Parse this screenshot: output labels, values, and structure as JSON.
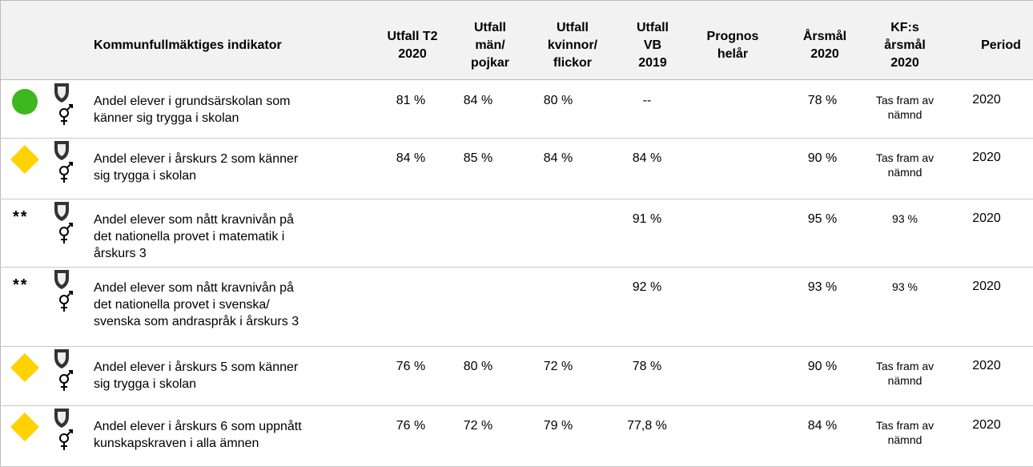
{
  "table": {
    "header": [
      [
        "Kommunfullmäktiges indikator"
      ],
      [
        "Utfall T2",
        "2020"
      ],
      [
        "Utfall",
        "män/",
        "pojkar"
      ],
      [
        "Utfall",
        "kvinnor/",
        "flickor"
      ],
      [
        "Utfall",
        "VB",
        "2019"
      ],
      [
        "Prognos",
        "helår"
      ],
      [
        "Årsmål",
        "2020"
      ],
      [
        "KF:s",
        "årsmål",
        "2020"
      ],
      [
        "Period"
      ]
    ],
    "rows": [
      {
        "marker": "circle",
        "marker_color": "#3cb81e",
        "note": null,
        "indicator": [
          "Andel elever i grundsärskolan som",
          "känner sig trygga i skolan"
        ],
        "cells": [
          "81 %",
          "84 %",
          "80 %",
          "--",
          null,
          "78 %",
          "Tas fram av nämnd",
          "2020"
        ]
      },
      {
        "marker": "diamond",
        "marker_color": "#ffd200",
        "note": null,
        "indicator": [
          "Andel elever i årskurs 2 som känner",
          "sig trygga i skolan"
        ],
        "cells": [
          "84 %",
          "85 %",
          "84 %",
          "84 %",
          null,
          "90 %",
          "Tas fram av nämnd",
          "2020"
        ]
      },
      {
        "marker": null,
        "marker_color": null,
        "note": "**",
        "indicator": [
          "Andel elever som nått kravnivån på",
          "det nationella provet i matematik i",
          "årskurs 3"
        ],
        "cells": [
          null,
          null,
          null,
          "91 %",
          null,
          "95 %",
          "93 %",
          "2020"
        ]
      },
      {
        "marker": null,
        "marker_color": null,
        "note": "**",
        "indicator": [
          "Andel elever som nått kravnivån på",
          "det nationella provet i svenska/",
          "svenska som andraspråk i årskurs 3"
        ],
        "cells": [
          null,
          null,
          null,
          "92 %",
          null,
          "93 %",
          "93 %",
          "2020"
        ]
      },
      {
        "marker": "diamond",
        "marker_color": "#ffd200",
        "note": null,
        "indicator": [
          "Andel elever i årskurs 5 som känner",
          "sig trygga i skolan"
        ],
        "cells": [
          "76 %",
          "80 %",
          "72 %",
          "78 %",
          null,
          "90 %",
          "Tas fram av nämnd",
          "2020"
        ]
      },
      {
        "marker": "diamond",
        "marker_color": "#ffd200",
        "note": null,
        "indicator": [
          "Andel elever i årskurs 6 som uppnått",
          "kunskapskraven i alla ämnen"
        ],
        "cells": [
          "76 %",
          "72 %",
          "79 %",
          "77,8 %",
          null,
          "84 %",
          "Tas fram av nämnd",
          "2020"
        ]
      }
    ]
  }
}
